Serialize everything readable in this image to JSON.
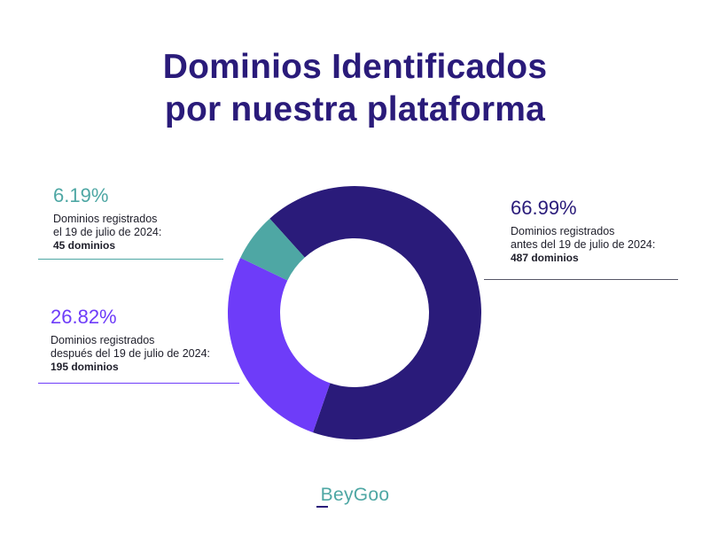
{
  "title_line1": "Dominios Identificados",
  "title_line2": "por nuestra plataforma",
  "brand": "BeyGoo",
  "chart_data": {
    "type": "pie",
    "donut": true,
    "series": [
      {
        "name": "antes",
        "value": 66.99,
        "label": "66.99%",
        "desc1": "Dominios registrados",
        "desc2": "antes del 19 de julio de 2024:",
        "count": "487 dominios",
        "color": "#2a1b7a"
      },
      {
        "name": "despues",
        "value": 26.82,
        "label": "26.82%",
        "desc1": "Dominios registrados",
        "desc2": "después del 19 de julio de 2024:",
        "count": "195 dominios",
        "color": "#6e3cf9"
      },
      {
        "name": "el-19",
        "value": 6.19,
        "label": "6.19%",
        "desc1": "Dominios registrados",
        "desc2": "el 19 de julio de 2024:",
        "count": "45 dominios",
        "color": "#4ea7a4"
      }
    ]
  }
}
